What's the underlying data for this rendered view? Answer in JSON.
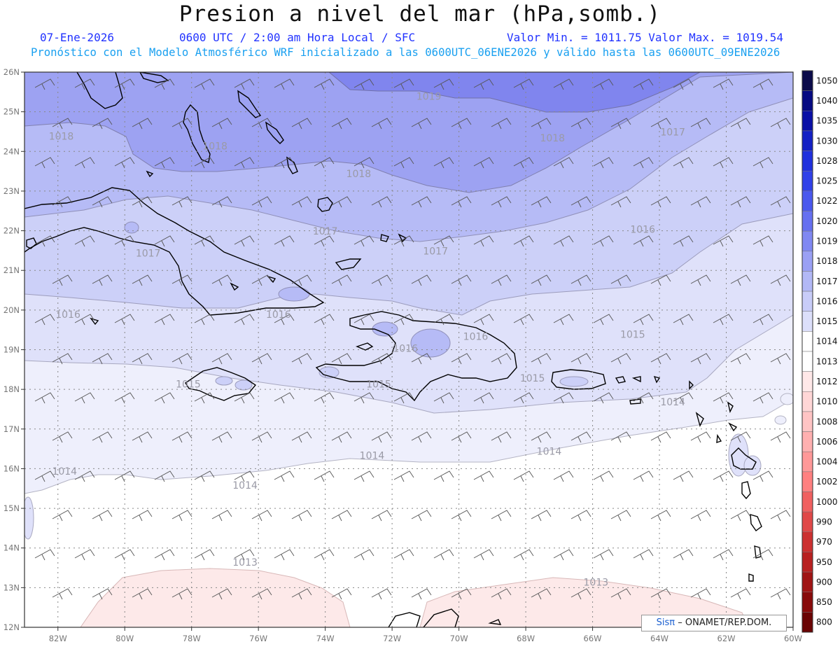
{
  "title": "Presion a nivel del mar (hPa,somb.)",
  "header": {
    "date": "07-Ene-2026",
    "time": "0600 UTC / 2:00 am Hora Local / SFC",
    "minmax": "Valor Min. = 1011.75  Valor Max. = 1019.54",
    "model": "Pronóstico con el Modelo Atmosférico WRF inicializado a las 0600UTC_06ENE2026 y válido hasta las  0600UTC_09ENE2026"
  },
  "map": {
    "lon_range": [
      -83,
      -60
    ],
    "lat_range": [
      12,
      26
    ],
    "lon_ticks": [
      {
        "v": -82,
        "t": "82W"
      },
      {
        "v": -80,
        "t": "80W"
      },
      {
        "v": -78,
        "t": "78W"
      },
      {
        "v": -76,
        "t": "76W"
      },
      {
        "v": -74,
        "t": "74W"
      },
      {
        "v": -72,
        "t": "72W"
      },
      {
        "v": -70,
        "t": "70W"
      },
      {
        "v": -68,
        "t": "68W"
      },
      {
        "v": -66,
        "t": "66W"
      },
      {
        "v": -64,
        "t": "64W"
      },
      {
        "v": -62,
        "t": "62W"
      },
      {
        "v": -60,
        "t": "60W"
      }
    ],
    "lat_ticks": [
      {
        "v": 26,
        "t": "26N"
      },
      {
        "v": 25,
        "t": "25N"
      },
      {
        "v": 24,
        "t": "24N"
      },
      {
        "v": 23,
        "t": "23N"
      },
      {
        "v": 22,
        "t": "22N"
      },
      {
        "v": 21,
        "t": "21N"
      },
      {
        "v": 20,
        "t": "20N"
      },
      {
        "v": 19,
        "t": "19N"
      },
      {
        "v": 18,
        "t": "18N"
      },
      {
        "v": 17,
        "t": "17N"
      },
      {
        "v": 16,
        "t": "16N"
      },
      {
        "v": 15,
        "t": "15N"
      },
      {
        "v": 14,
        "t": "14N"
      },
      {
        "v": 13,
        "t": "13N"
      },
      {
        "v": 12,
        "t": "12N"
      }
    ],
    "contour_labels": [
      {
        "t": "1019",
        "lon": -70.9,
        "lat": 25.3
      },
      {
        "t": "1018",
        "lon": -81.9,
        "lat": 24.3
      },
      {
        "t": "1018",
        "lon": -77.3,
        "lat": 24.05
      },
      {
        "t": "1018",
        "lon": -73.0,
        "lat": 23.35
      },
      {
        "t": "1018",
        "lon": -67.2,
        "lat": 24.25
      },
      {
        "t": "1017",
        "lon": -63.6,
        "lat": 24.4
      },
      {
        "t": "1017",
        "lon": -74.0,
        "lat": 21.9
      },
      {
        "t": "1017",
        "lon": -79.3,
        "lat": 21.35
      },
      {
        "t": "1017",
        "lon": -70.7,
        "lat": 21.4
      },
      {
        "t": "1016",
        "lon": -64.5,
        "lat": 21.95
      },
      {
        "t": "1016",
        "lon": -81.7,
        "lat": 19.8
      },
      {
        "t": "1016",
        "lon": -75.4,
        "lat": 19.8
      },
      {
        "t": "1016",
        "lon": -71.6,
        "lat": 18.95
      },
      {
        "t": "1016",
        "lon": -69.5,
        "lat": 19.25
      },
      {
        "t": "1015",
        "lon": -64.8,
        "lat": 19.3
      },
      {
        "t": "1015",
        "lon": -78.1,
        "lat": 18.05
      },
      {
        "t": "1015",
        "lon": -72.4,
        "lat": 18.05
      },
      {
        "t": "1015",
        "lon": -67.8,
        "lat": 18.2
      },
      {
        "t": "1014",
        "lon": -63.6,
        "lat": 17.6
      },
      {
        "t": "1014",
        "lon": -72.6,
        "lat": 16.25
      },
      {
        "t": "1014",
        "lon": -67.3,
        "lat": 16.35
      },
      {
        "t": "1014",
        "lon": -81.8,
        "lat": 15.85
      },
      {
        "t": "1014",
        "lon": -76.4,
        "lat": 15.5
      },
      {
        "t": "1013",
        "lon": -76.4,
        "lat": 13.55
      },
      {
        "t": "1013",
        "lon": -65.9,
        "lat": 13.05
      }
    ]
  },
  "colorbar": {
    "levels": [
      "1050",
      "1040",
      "1035",
      "1030",
      "1028",
      "1025",
      "1022",
      "1020",
      "1019",
      "1018",
      "1017",
      "1016",
      "1015",
      "1014",
      "1013",
      "1012",
      "1010",
      "1008",
      "1006",
      "1004",
      "1002",
      "1000",
      "990",
      "970",
      "950",
      "900",
      "850",
      "800"
    ],
    "colors": [
      "#0b0b4a",
      "#060a82",
      "#0a10a6",
      "#1420c4",
      "#2030dd",
      "#3040e8",
      "#4a58ee",
      "#6670f0",
      "#8088f2",
      "#9aa0f4",
      "#b2b8f6",
      "#c8ccf8",
      "#dcdffa",
      "#ffffff",
      "#ffffff",
      "#ffe8e8",
      "#ffd6d6",
      "#ffc4c4",
      "#ffb0b0",
      "#ff9898",
      "#ff8080",
      "#f06060",
      "#e04848",
      "#cc3030",
      "#b82020",
      "#a01414",
      "#880a0a",
      "#6a0404"
    ]
  },
  "credit": {
    "brand": "Sisπ",
    "text": "– ONAMET/REP.DOM."
  }
}
